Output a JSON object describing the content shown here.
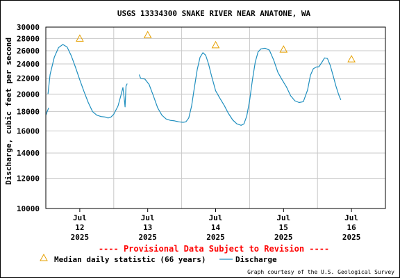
{
  "chart_data": {
    "type": "line",
    "title": "USGS 13334300 SNAKE RIVER NEAR ANATONE, WA",
    "ylabel": "Discharge, cubic feet per second",
    "yscale": "log",
    "ylim": [
      10000,
      30000
    ],
    "yticks": [
      {
        "v": 10000,
        "label": "10000"
      },
      {
        "v": 12000,
        "label": "12000"
      },
      {
        "v": 14000,
        "label": "14000"
      },
      {
        "v": 16000,
        "label": "16000"
      },
      {
        "v": 18000,
        "label": "18000"
      },
      {
        "v": 20000,
        "label": "20000"
      },
      {
        "v": 22000,
        "label": "22000"
      },
      {
        "v": 24000,
        "label": "24000"
      },
      {
        "v": 26000,
        "label": "26000"
      },
      {
        "v": 28000,
        "label": "28000"
      },
      {
        "v": 30000,
        "label": "30000"
      }
    ],
    "xlim": [
      "2025-07-11 12:00",
      "2025-07-16 12:00"
    ],
    "xticks": [
      {
        "date": "2025-07-12 00:00",
        "month": "Jul",
        "day": "12",
        "year": "2025"
      },
      {
        "date": "2025-07-13 00:00",
        "month": "Jul",
        "day": "13",
        "year": "2025"
      },
      {
        "date": "2025-07-14 00:00",
        "month": "Jul",
        "day": "14",
        "year": "2025"
      },
      {
        "date": "2025-07-15 00:00",
        "month": "Jul",
        "day": "15",
        "year": "2025"
      },
      {
        "date": "2025-07-16 00:00",
        "month": "Jul",
        "day": "16",
        "year": "2025"
      }
    ],
    "grid": true,
    "legend_position": "bottom",
    "colors": {
      "discharge": "#1f8fbf",
      "median": "#e6a000",
      "grid": "#c8c8c8",
      "provisional": "#ff0000"
    },
    "series": [
      {
        "name": "Discharge",
        "segments": [
          [
            [
              "2025-07-11 12:00",
              17600
            ],
            [
              "2025-07-11 12:30",
              18000
            ],
            [
              "2025-07-11 13:00",
              18400
            ]
          ],
          [
            [
              "2025-07-11 12:45",
              20000
            ],
            [
              "2025-07-11 13:30",
              22500
            ],
            [
              "2025-07-11 15:00",
              25000
            ],
            [
              "2025-07-11 16:30",
              26500
            ],
            [
              "2025-07-11 18:00",
              27000
            ],
            [
              "2025-07-11 19:30",
              26600
            ],
            [
              "2025-07-11 21:00",
              25200
            ],
            [
              "2025-07-11 22:30",
              23500
            ],
            [
              "2025-07-12 00:00",
              21800
            ],
            [
              "2025-07-12 01:30",
              20300
            ],
            [
              "2025-07-12 03:00",
              19000
            ],
            [
              "2025-07-12 04:30",
              18000
            ],
            [
              "2025-07-12 06:00",
              17600
            ],
            [
              "2025-07-12 07:30",
              17450
            ],
            [
              "2025-07-12 09:00",
              17400
            ],
            [
              "2025-07-12 10:00",
              17300
            ],
            [
              "2025-07-12 11:00",
              17400
            ],
            [
              "2025-07-12 12:00",
              17700
            ],
            [
              "2025-07-12 13:30",
              18600
            ],
            [
              "2025-07-12 14:30",
              19800
            ],
            [
              "2025-07-12 15:15",
              20800
            ],
            [
              "2025-07-12 15:40",
              19600
            ],
            [
              "2025-07-12 16:00",
              18500
            ],
            [
              "2025-07-12 16:20",
              21000
            ],
            [
              "2025-07-12 16:45",
              21300
            ]
          ],
          [
            [
              "2025-07-12 21:00",
              22500
            ],
            [
              "2025-07-12 21:30",
              22000
            ],
            [
              "2025-07-12 23:00",
              21900
            ],
            [
              "2025-07-13 00:30",
              21200
            ],
            [
              "2025-07-13 02:00",
              19800
            ],
            [
              "2025-07-13 03:30",
              18400
            ],
            [
              "2025-07-13 05:00",
              17600
            ],
            [
              "2025-07-13 06:30",
              17200
            ],
            [
              "2025-07-13 08:00",
              17050
            ],
            [
              "2025-07-13 09:30",
              17000
            ],
            [
              "2025-07-13 11:00",
              16900
            ],
            [
              "2025-07-13 12:30",
              16850
            ],
            [
              "2025-07-13 13:30",
              16900
            ],
            [
              "2025-07-13 14:30",
              17300
            ],
            [
              "2025-07-13 15:30",
              18600
            ],
            [
              "2025-07-13 16:30",
              20800
            ],
            [
              "2025-07-13 17:30",
              23200
            ],
            [
              "2025-07-13 18:30",
              25000
            ],
            [
              "2025-07-13 19:30",
              25700
            ],
            [
              "2025-07-13 20:30",
              25300
            ],
            [
              "2025-07-13 21:30",
              24000
            ],
            [
              "2025-07-13 22:30",
              22400
            ],
            [
              "2025-07-14 00:00",
              20400
            ],
            [
              "2025-07-14 01:30",
              19500
            ],
            [
              "2025-07-14 03:00",
              18700
            ],
            [
              "2025-07-14 04:30",
              17800
            ],
            [
              "2025-07-14 06:00",
              17100
            ],
            [
              "2025-07-14 07:30",
              16700
            ],
            [
              "2025-07-14 09:00",
              16550
            ],
            [
              "2025-07-14 10:00",
              16700
            ],
            [
              "2025-07-14 11:00",
              17500
            ],
            [
              "2025-07-14 12:00",
              19200
            ],
            [
              "2025-07-14 13:00",
              21800
            ],
            [
              "2025-07-14 14:00",
              24300
            ],
            [
              "2025-07-14 15:00",
              25800
            ],
            [
              "2025-07-14 16:00",
              26300
            ],
            [
              "2025-07-14 17:30",
              26400
            ],
            [
              "2025-07-14 19:00",
              26100
            ],
            [
              "2025-07-14 20:30",
              24600
            ],
            [
              "2025-07-14 22:00",
              22800
            ],
            [
              "2025-07-14 23:30",
              21800
            ],
            [
              "2025-07-15 01:00",
              20900
            ],
            [
              "2025-07-15 02:30",
              19800
            ],
            [
              "2025-07-15 04:00",
              19200
            ],
            [
              "2025-07-15 05:30",
              19000
            ],
            [
              "2025-07-15 07:00",
              19100
            ],
            [
              "2025-07-15 08:30",
              20500
            ],
            [
              "2025-07-15 09:30",
              22400
            ],
            [
              "2025-07-15 10:30",
              23300
            ],
            [
              "2025-07-15 11:30",
              23550
            ],
            [
              "2025-07-15 12:30",
              23600
            ],
            [
              "2025-07-15 13:30",
              24200
            ],
            [
              "2025-07-15 14:30",
              24900
            ],
            [
              "2025-07-15 15:30",
              24800
            ],
            [
              "2025-07-15 16:30",
              23800
            ],
            [
              "2025-07-15 17:30",
              22400
            ],
            [
              "2025-07-15 18:30",
              21000
            ],
            [
              "2025-07-15 19:30",
              19900
            ],
            [
              "2025-07-15 20:15",
              19300
            ]
          ]
        ]
      },
      {
        "name": "Median daily statistic (66 years)",
        "points": [
          [
            "2025-07-12 00:00",
            28000
          ],
          [
            "2025-07-13 00:00",
            28600
          ],
          [
            "2025-07-14 00:00",
            26900
          ],
          [
            "2025-07-15 00:00",
            26200
          ],
          [
            "2025-07-16 00:00",
            24700
          ]
        ]
      }
    ]
  },
  "provisional_text": "---- Provisional Data Subject to Revision ----",
  "legend": {
    "median_label": "Median daily statistic (66 years)",
    "discharge_label": "Discharge"
  },
  "credit": "Graph courtesy of the U.S. Geological Survey"
}
